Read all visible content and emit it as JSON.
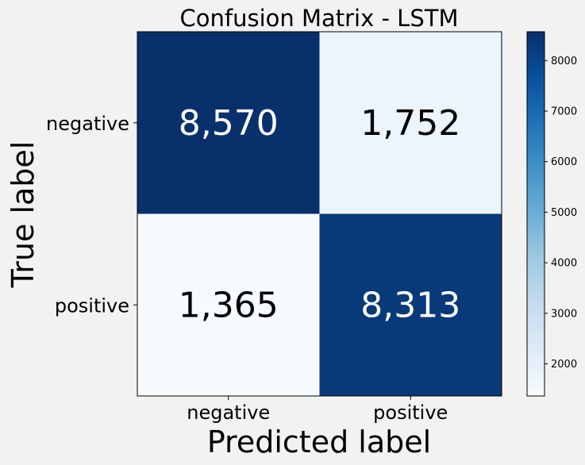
{
  "chart_data": {
    "type": "heatmap",
    "title": "Confusion Matrix - LSTM",
    "xlabel": "Predicted label",
    "ylabel": "True label",
    "x_categories": [
      "negative",
      "positive"
    ],
    "y_categories": [
      "negative",
      "positive"
    ],
    "values": [
      [
        8570,
        1752
      ],
      [
        1365,
        8313
      ]
    ],
    "cell_labels": [
      [
        "8,570",
        "1,752"
      ],
      [
        "1,365",
        "8,313"
      ]
    ],
    "colormap": "Blues",
    "color_range": [
      1365,
      8570
    ],
    "colorbar_ticks": [
      2000,
      3000,
      4000,
      5000,
      6000,
      7000,
      8000
    ],
    "colorbar_tick_labels": [
      "2000",
      "3000",
      "4000",
      "5000",
      "6000",
      "7000",
      "8000"
    ]
  }
}
